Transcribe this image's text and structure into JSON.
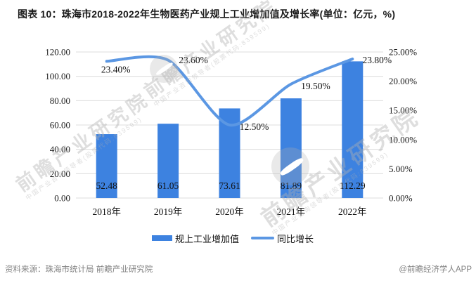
{
  "title": "图表 10：珠海市2018-2022年生物医药产业规上工业增加值及增长率(单位：亿元，%)",
  "source": "资料来源：珠海市统计局 前瞻产业研究院",
  "credit": "@前瞻经济学人APP",
  "watermark": {
    "text": "前瞻产业研究院",
    "subtext": "中国产业咨询领导者(股票代码:839599)"
  },
  "colors": {
    "bar": "#3d82e0",
    "line": "#5b97e3",
    "grid": "#dcdcdc",
    "text": "#1a1a1a",
    "muted": "#828282"
  },
  "legend": [
    {
      "label": "规上工业增加值",
      "type": "bar"
    },
    {
      "label": "同比增长",
      "type": "line"
    }
  ],
  "chart_data": {
    "type": "bar+line",
    "title": "珠海市2018-2022年生物医药产业规上工业增加值及增长率",
    "categories": [
      "2018年",
      "2019年",
      "2020年",
      "2021年",
      "2022年"
    ],
    "series": [
      {
        "name": "规上工业增加值",
        "type": "bar",
        "axis": "left",
        "values": [
          52.48,
          61.05,
          73.61,
          81.89,
          112.29
        ],
        "labels": [
          "52.48",
          "61.05",
          "73.61",
          "81.89",
          "112.29"
        ]
      },
      {
        "name": "同比增长",
        "type": "line",
        "axis": "right",
        "values": [
          23.4,
          23.6,
          12.5,
          19.5,
          23.8
        ],
        "labels": [
          "23.40%",
          "23.60%",
          "12.50%",
          "19.50%",
          "23.80%"
        ]
      }
    ],
    "left_axis": {
      "min": 0,
      "max": 120,
      "step": 20,
      "tick_labels": [
        "0.00",
        "20.00",
        "40.00",
        "60.00",
        "80.00",
        "100.00",
        "120.00"
      ]
    },
    "right_axis": {
      "min": 0,
      "max": 25,
      "step": 5,
      "tick_labels": [
        "0.00%",
        "5.00%",
        "10.00%",
        "15.00%",
        "20.00%",
        "25.00%"
      ]
    },
    "grid": true,
    "legend_position": "bottom"
  }
}
